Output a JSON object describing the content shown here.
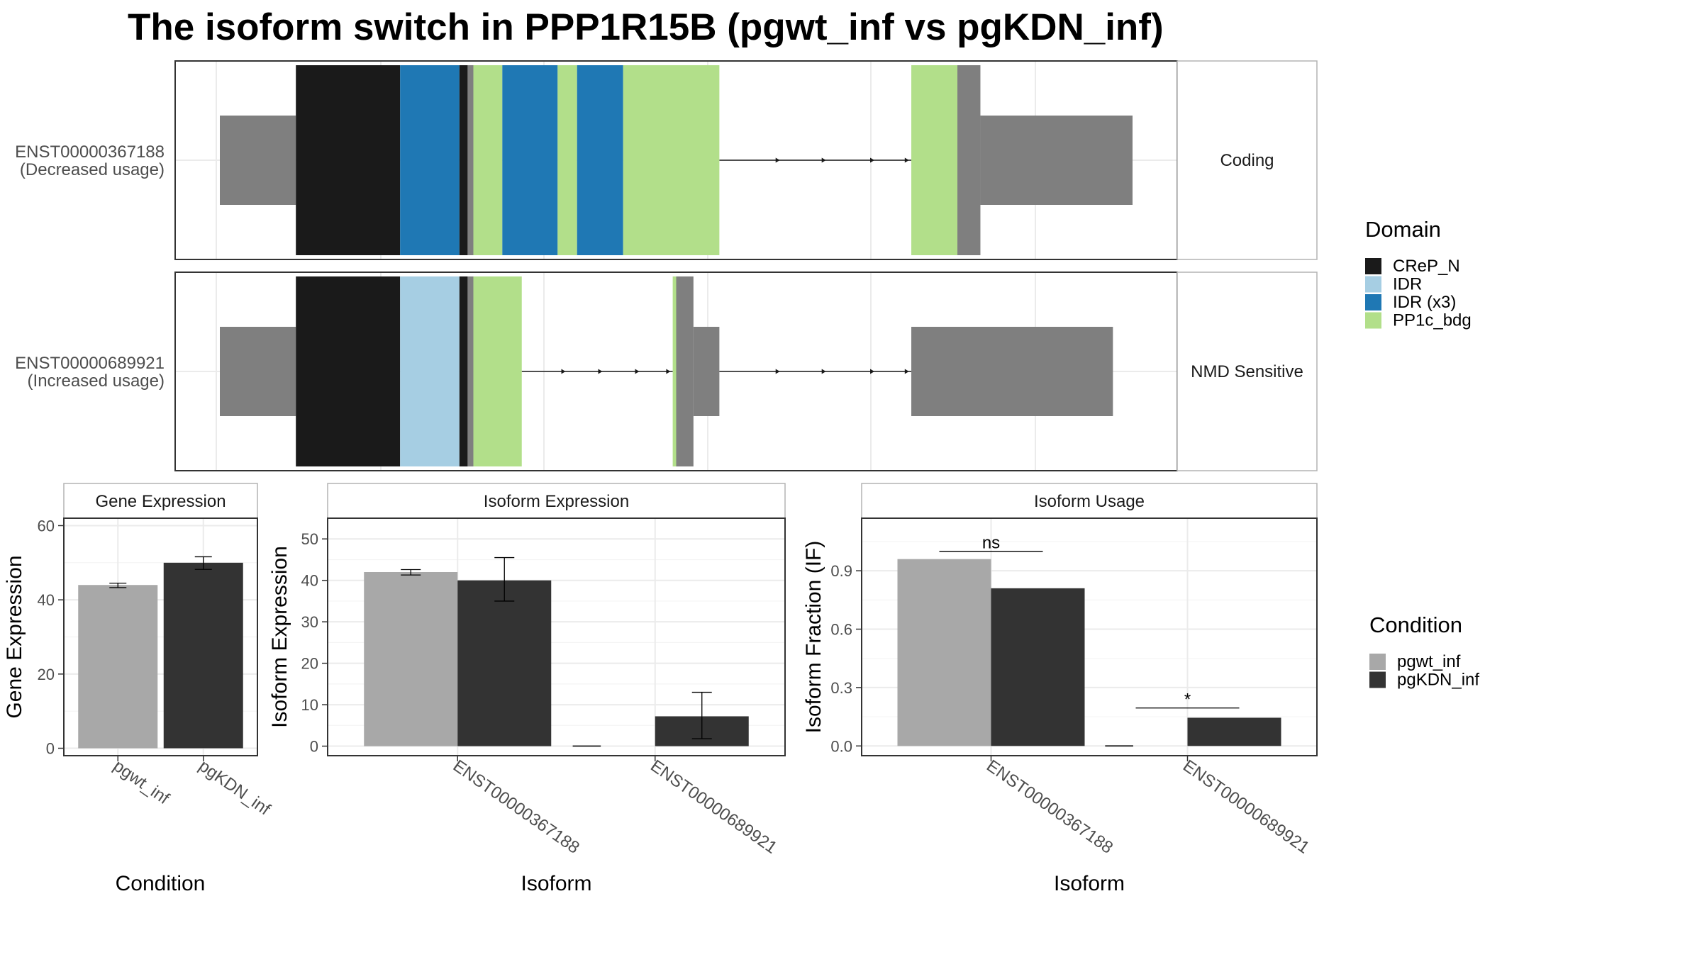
{
  "title": "The isoform switch in PPP1R15B (pgwt_inf vs pgKDN_inf)",
  "colors": {
    "CReP_N": "#1a1a1a",
    "IDR": "#a6cee3",
    "IDR (x3)": "#1f78b4",
    "PP1c_bdg": "#b2df8a",
    "none": "#7f7f7f",
    "pgwt_inf": "#a8a8a8",
    "pgKDN_inf": "#333333",
    "panel_border": "#333333",
    "strip_border": "#b3b3b3",
    "grid": "#ebebeb"
  },
  "transcripts": [
    {
      "id": "ENST00000367188",
      "usage": "(Decreased usage)",
      "facet": "Coding",
      "segments": [
        {
          "start": 0.0,
          "end": 0.0833,
          "cds": false,
          "domain": "none"
        },
        {
          "start": 0.0833,
          "end": 0.1975,
          "cds": true,
          "domain": "CReP_N"
        },
        {
          "start": 0.1975,
          "end": 0.2625,
          "cds": true,
          "domain": "IDR (x3)"
        },
        {
          "start": 0.2625,
          "end": 0.2715,
          "cds": true,
          "domain": "CReP_N"
        },
        {
          "start": 0.2715,
          "end": 0.2778,
          "cds": true,
          "domain": "none"
        },
        {
          "start": 0.2778,
          "end": 0.3095,
          "cds": true,
          "domain": "PP1c_bdg"
        },
        {
          "start": 0.3095,
          "end": 0.3701,
          "cds": true,
          "domain": "IDR (x3)"
        },
        {
          "start": 0.3701,
          "end": 0.3914,
          "cds": true,
          "domain": "PP1c_bdg"
        },
        {
          "start": 0.3914,
          "end": 0.4419,
          "cds": true,
          "domain": "IDR (x3)"
        },
        {
          "start": 0.4419,
          "end": 0.5473,
          "cds": true,
          "domain": "PP1c_bdg"
        },
        {
          "start": 0.7576,
          "end": 0.8081,
          "cds": true,
          "domain": "PP1c_bdg"
        },
        {
          "start": 0.8081,
          "end": 0.8333,
          "cds": true,
          "domain": "none"
        },
        {
          "start": 0.8333,
          "end": 1.0,
          "cds": false,
          "domain": "none"
        }
      ],
      "introns": [
        {
          "start": 0.5473,
          "end": 0.7576,
          "arrows": [
            0.6136,
            0.6641,
            0.7172,
            0.7551
          ]
        }
      ]
    },
    {
      "id": "ENST00000689921",
      "usage": "(Increased usage)",
      "facet": "NMD Sensitive",
      "segments": [
        {
          "start": 0.0,
          "end": 0.0833,
          "cds": false,
          "domain": "none"
        },
        {
          "start": 0.0833,
          "end": 0.1975,
          "cds": true,
          "domain": "CReP_N"
        },
        {
          "start": 0.1975,
          "end": 0.2625,
          "cds": true,
          "domain": "IDR"
        },
        {
          "start": 0.2625,
          "end": 0.2715,
          "cds": true,
          "domain": "CReP_N"
        },
        {
          "start": 0.2715,
          "end": 0.2778,
          "cds": true,
          "domain": "none"
        },
        {
          "start": 0.2778,
          "end": 0.3308,
          "cds": true,
          "domain": "PP1c_bdg"
        },
        {
          "start": 0.4962,
          "end": 0.5,
          "cds": true,
          "domain": "PP1c_bdg"
        },
        {
          "start": 0.5,
          "end": 0.5189,
          "cds": true,
          "domain": "none"
        },
        {
          "start": 0.5189,
          "end": 0.5473,
          "cds": false,
          "domain": "none"
        },
        {
          "start": 0.7576,
          "end": 0.9785,
          "cds": false,
          "domain": "none"
        }
      ],
      "introns": [
        {
          "start": 0.3308,
          "end": 0.4962,
          "arrows": [
            0.3788,
            0.4192,
            0.4596,
            0.4937
          ]
        },
        {
          "start": 0.5473,
          "end": 0.7576,
          "arrows": [
            0.6136,
            0.6641,
            0.7172,
            0.7551
          ]
        }
      ]
    }
  ],
  "domain_legend": {
    "title": "Domain",
    "items": [
      {
        "label": "CReP_N",
        "color": "#1a1a1a"
      },
      {
        "label": "IDR",
        "color": "#a6cee3"
      },
      {
        "label": "IDR (x3)",
        "color": "#1f78b4"
      },
      {
        "label": "PP1c_bdg",
        "color": "#b2df8a"
      }
    ]
  },
  "condition_legend": {
    "title": "Condition",
    "items": [
      {
        "label": "pgwt_inf",
        "color": "#a8a8a8"
      },
      {
        "label": "pgKDN_inf",
        "color": "#333333"
      }
    ]
  },
  "chart_data": [
    {
      "type": "bar",
      "title": "Gene Expression",
      "xlabel": "Condition",
      "ylabel": "Gene Expression",
      "categories": [
        "pgwt_inf",
        "pgKDN_inf"
      ],
      "values": [
        44,
        50
      ],
      "errors": [
        [
          43.3,
          44.5
        ],
        [
          48.2,
          51.6
        ]
      ],
      "ylim": [
        -2,
        62
      ],
      "yticks": [
        0,
        20,
        40,
        60
      ]
    },
    {
      "type": "bar",
      "title": "Isoform Expression",
      "xlabel": "Isoform",
      "ylabel": "Isoform Expression",
      "categories": [
        "ENST00000367188",
        "ENST00000689921"
      ],
      "series": [
        {
          "name": "pgwt_inf",
          "values": [
            42,
            0
          ],
          "errors": [
            [
              41.3,
              42.6
            ],
            [
              0,
              0
            ]
          ]
        },
        {
          "name": "pgKDN_inf",
          "values": [
            40,
            7.2
          ],
          "errors": [
            [
              35,
              45.5
            ],
            [
              1.8,
              13
            ]
          ]
        }
      ],
      "ylim": [
        -2.3,
        55
      ],
      "yticks": [
        0,
        10,
        20,
        30,
        40,
        50
      ]
    },
    {
      "type": "bar",
      "title": "Isoform Usage",
      "xlabel": "Isoform",
      "ylabel": "Isoform Fraction (IF)",
      "categories": [
        "ENST00000367188",
        "ENST00000689921"
      ],
      "series": [
        {
          "name": "pgwt_inf",
          "values": [
            0.96,
            0
          ]
        },
        {
          "name": "pgKDN_inf",
          "values": [
            0.81,
            0.145
          ]
        }
      ],
      "annotations": [
        {
          "label": "ns",
          "category": 0,
          "y": 1.0
        },
        {
          "label": "*",
          "category": 1,
          "y": 0.195
        }
      ],
      "ylim": [
        -0.05,
        1.17
      ],
      "yticks": [
        0.0,
        0.3,
        0.6,
        0.9
      ],
      "ytick_labels": [
        "0.0",
        "0.3",
        "0.6",
        "0.9"
      ]
    }
  ]
}
